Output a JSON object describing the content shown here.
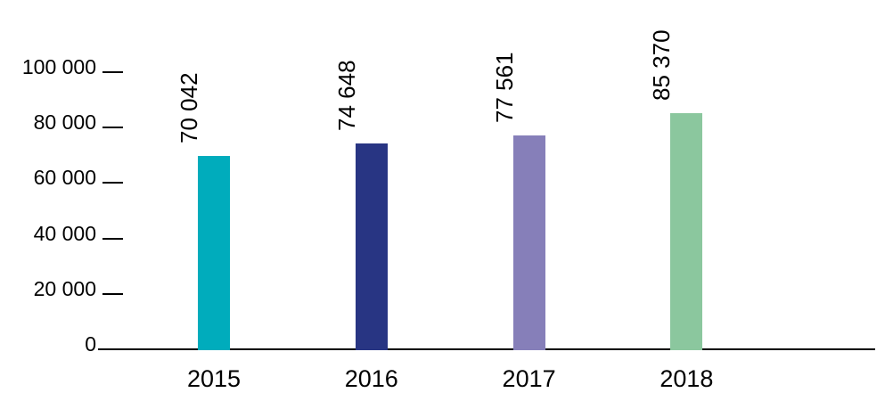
{
  "chart_data": {
    "type": "bar",
    "title": "",
    "xlabel": "",
    "ylabel": "",
    "categories": [
      "2015",
      "2016",
      "2017",
      "2018"
    ],
    "values": [
      70042,
      74648,
      77561,
      85370
    ],
    "value_labels": [
      "70 042",
      "74 648",
      "77 561",
      "85 370"
    ],
    "bar_colors": [
      "#00ACBC",
      "#283583",
      "#867FB9",
      "#8BC79E"
    ],
    "ylim": [
      0,
      100000
    ],
    "yticks": [
      0,
      20000,
      40000,
      60000,
      80000,
      100000
    ],
    "ytick_labels": [
      "0",
      "20 000",
      "40 000",
      "60 000",
      "80 000",
      "100 000"
    ],
    "grid": false,
    "legend": false,
    "value_label_rotation_deg": -90,
    "axis_color": "#000000",
    "text_color": "#000000",
    "background_color": "#FFFFFF"
  }
}
